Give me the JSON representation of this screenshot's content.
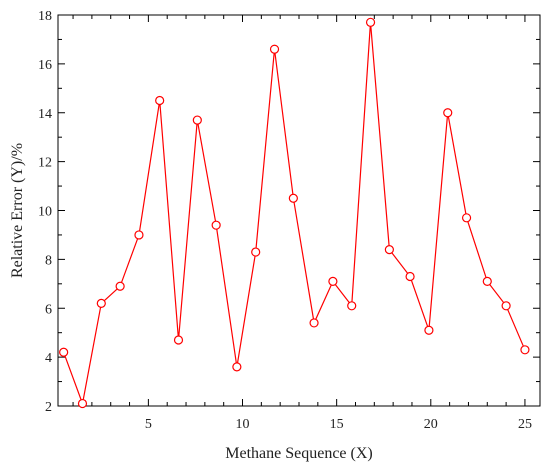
{
  "chart_data": {
    "type": "line",
    "title": "",
    "xlabel": "Methane Sequence (X)",
    "ylabel": "Relative Error (Y)/%",
    "xlim": [
      0.2,
      25.8
    ],
    "ylim": [
      2,
      18
    ],
    "xticks": [
      5,
      10,
      15,
      20,
      25
    ],
    "yticks": [
      2,
      4,
      6,
      8,
      10,
      12,
      14,
      16,
      18
    ],
    "grid": false,
    "legend": "none",
    "series": [
      {
        "color": "#ff0000",
        "marker": "open-circle",
        "x": [
          0.5,
          1.5,
          2.5,
          3.5,
          4.5,
          5.6,
          6.6,
          7.6,
          8.6,
          9.7,
          10.7,
          11.7,
          12.7,
          13.8,
          14.8,
          15.8,
          16.8,
          17.8,
          18.9,
          19.9,
          20.9,
          21.9,
          23.0,
          24.0,
          25.0
        ],
        "values": [
          4.2,
          2.1,
          6.2,
          6.9,
          9.0,
          14.5,
          4.7,
          13.7,
          9.4,
          3.6,
          8.3,
          16.6,
          10.5,
          5.4,
          7.1,
          6.1,
          17.7,
          8.4,
          7.3,
          5.1,
          14.0,
          9.7,
          7.1,
          6.1,
          4.3
        ]
      }
    ]
  }
}
